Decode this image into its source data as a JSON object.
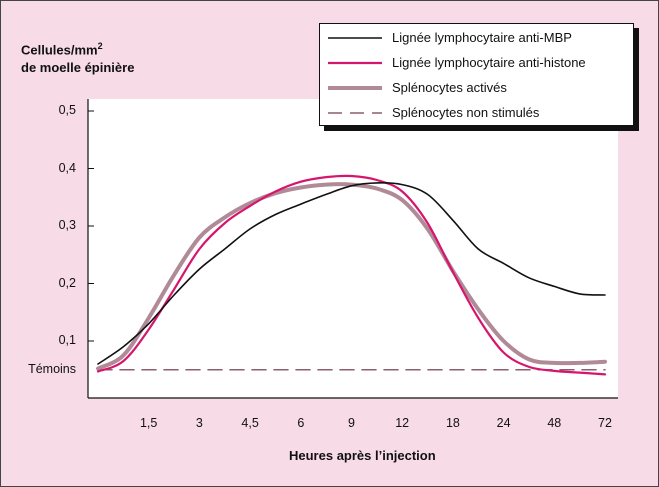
{
  "chart_data": {
    "type": "line",
    "title": "",
    "ylabel_line1": "Cellules/mm",
    "ylabel_sup": "2",
    "ylabel_line2": "de moelle épinière",
    "xlabel": "Heures après l’injection",
    "ylim": [
      0.0,
      0.5
    ],
    "y_ticks": [
      {
        "value": 0.5,
        "label": "0,5"
      },
      {
        "value": 0.4,
        "label": "0,4"
      },
      {
        "value": 0.3,
        "label": "0,3"
      },
      {
        "value": 0.2,
        "label": "0,2"
      },
      {
        "value": 0.1,
        "label": "0,1"
      },
      {
        "value": 0.05,
        "label": "Témoins"
      }
    ],
    "x_ticks": [
      "1,5",
      "3",
      "4,5",
      "6",
      "9",
      "12",
      "18",
      "24",
      "48",
      "72"
    ],
    "x_tick_index": [
      1,
      2,
      3,
      4,
      5,
      6,
      7,
      8,
      9,
      10
    ],
    "series": [
      {
        "name": "Lignée lymphocytaire anti-MBP",
        "color": "#111111",
        "style": "solid",
        "x": [
          0,
          0.5,
          1,
          1.5,
          2,
          2.5,
          3,
          3.5,
          4,
          4.5,
          5,
          5.5,
          6,
          6.5,
          7,
          7.5,
          8,
          8.5,
          9,
          9.5,
          10
        ],
        "y": [
          0.06,
          0.09,
          0.13,
          0.18,
          0.225,
          0.26,
          0.295,
          0.32,
          0.338,
          0.355,
          0.37,
          0.375,
          0.372,
          0.355,
          0.31,
          0.26,
          0.235,
          0.21,
          0.195,
          0.182,
          0.18
        ]
      },
      {
        "name": "Lignée lymphocytaire anti-histone",
        "color": "#d6166e",
        "style": "solid",
        "x": [
          0,
          0.5,
          1,
          1.5,
          2,
          2.5,
          3,
          3.5,
          4,
          4.5,
          5,
          5.5,
          6,
          6.5,
          7,
          7.5,
          8,
          8.5,
          9,
          9.5,
          10
        ],
        "y": [
          0.047,
          0.065,
          0.12,
          0.19,
          0.26,
          0.305,
          0.335,
          0.36,
          0.377,
          0.385,
          0.387,
          0.38,
          0.36,
          0.305,
          0.22,
          0.14,
          0.08,
          0.055,
          0.048,
          0.045,
          0.042
        ]
      },
      {
        "name": "Splénocytes activés",
        "color": "#b08a96",
        "style": "thick",
        "x": [
          0,
          0.5,
          1,
          1.5,
          2,
          2.5,
          3,
          3.5,
          4,
          4.5,
          5,
          5.5,
          6,
          6.5,
          7,
          7.5,
          8,
          8.5,
          9,
          9.5,
          10
        ],
        "y": [
          0.052,
          0.075,
          0.14,
          0.215,
          0.28,
          0.315,
          0.34,
          0.357,
          0.367,
          0.372,
          0.372,
          0.365,
          0.345,
          0.295,
          0.222,
          0.155,
          0.1,
          0.068,
          0.062,
          0.062,
          0.064
        ]
      },
      {
        "name": "Splénocytes non stimulés",
        "color": "#8a5f6e",
        "style": "dashed",
        "x": [
          0,
          10
        ],
        "y": [
          0.05,
          0.05
        ]
      }
    ],
    "legend_position": "top-right",
    "grid": false
  }
}
